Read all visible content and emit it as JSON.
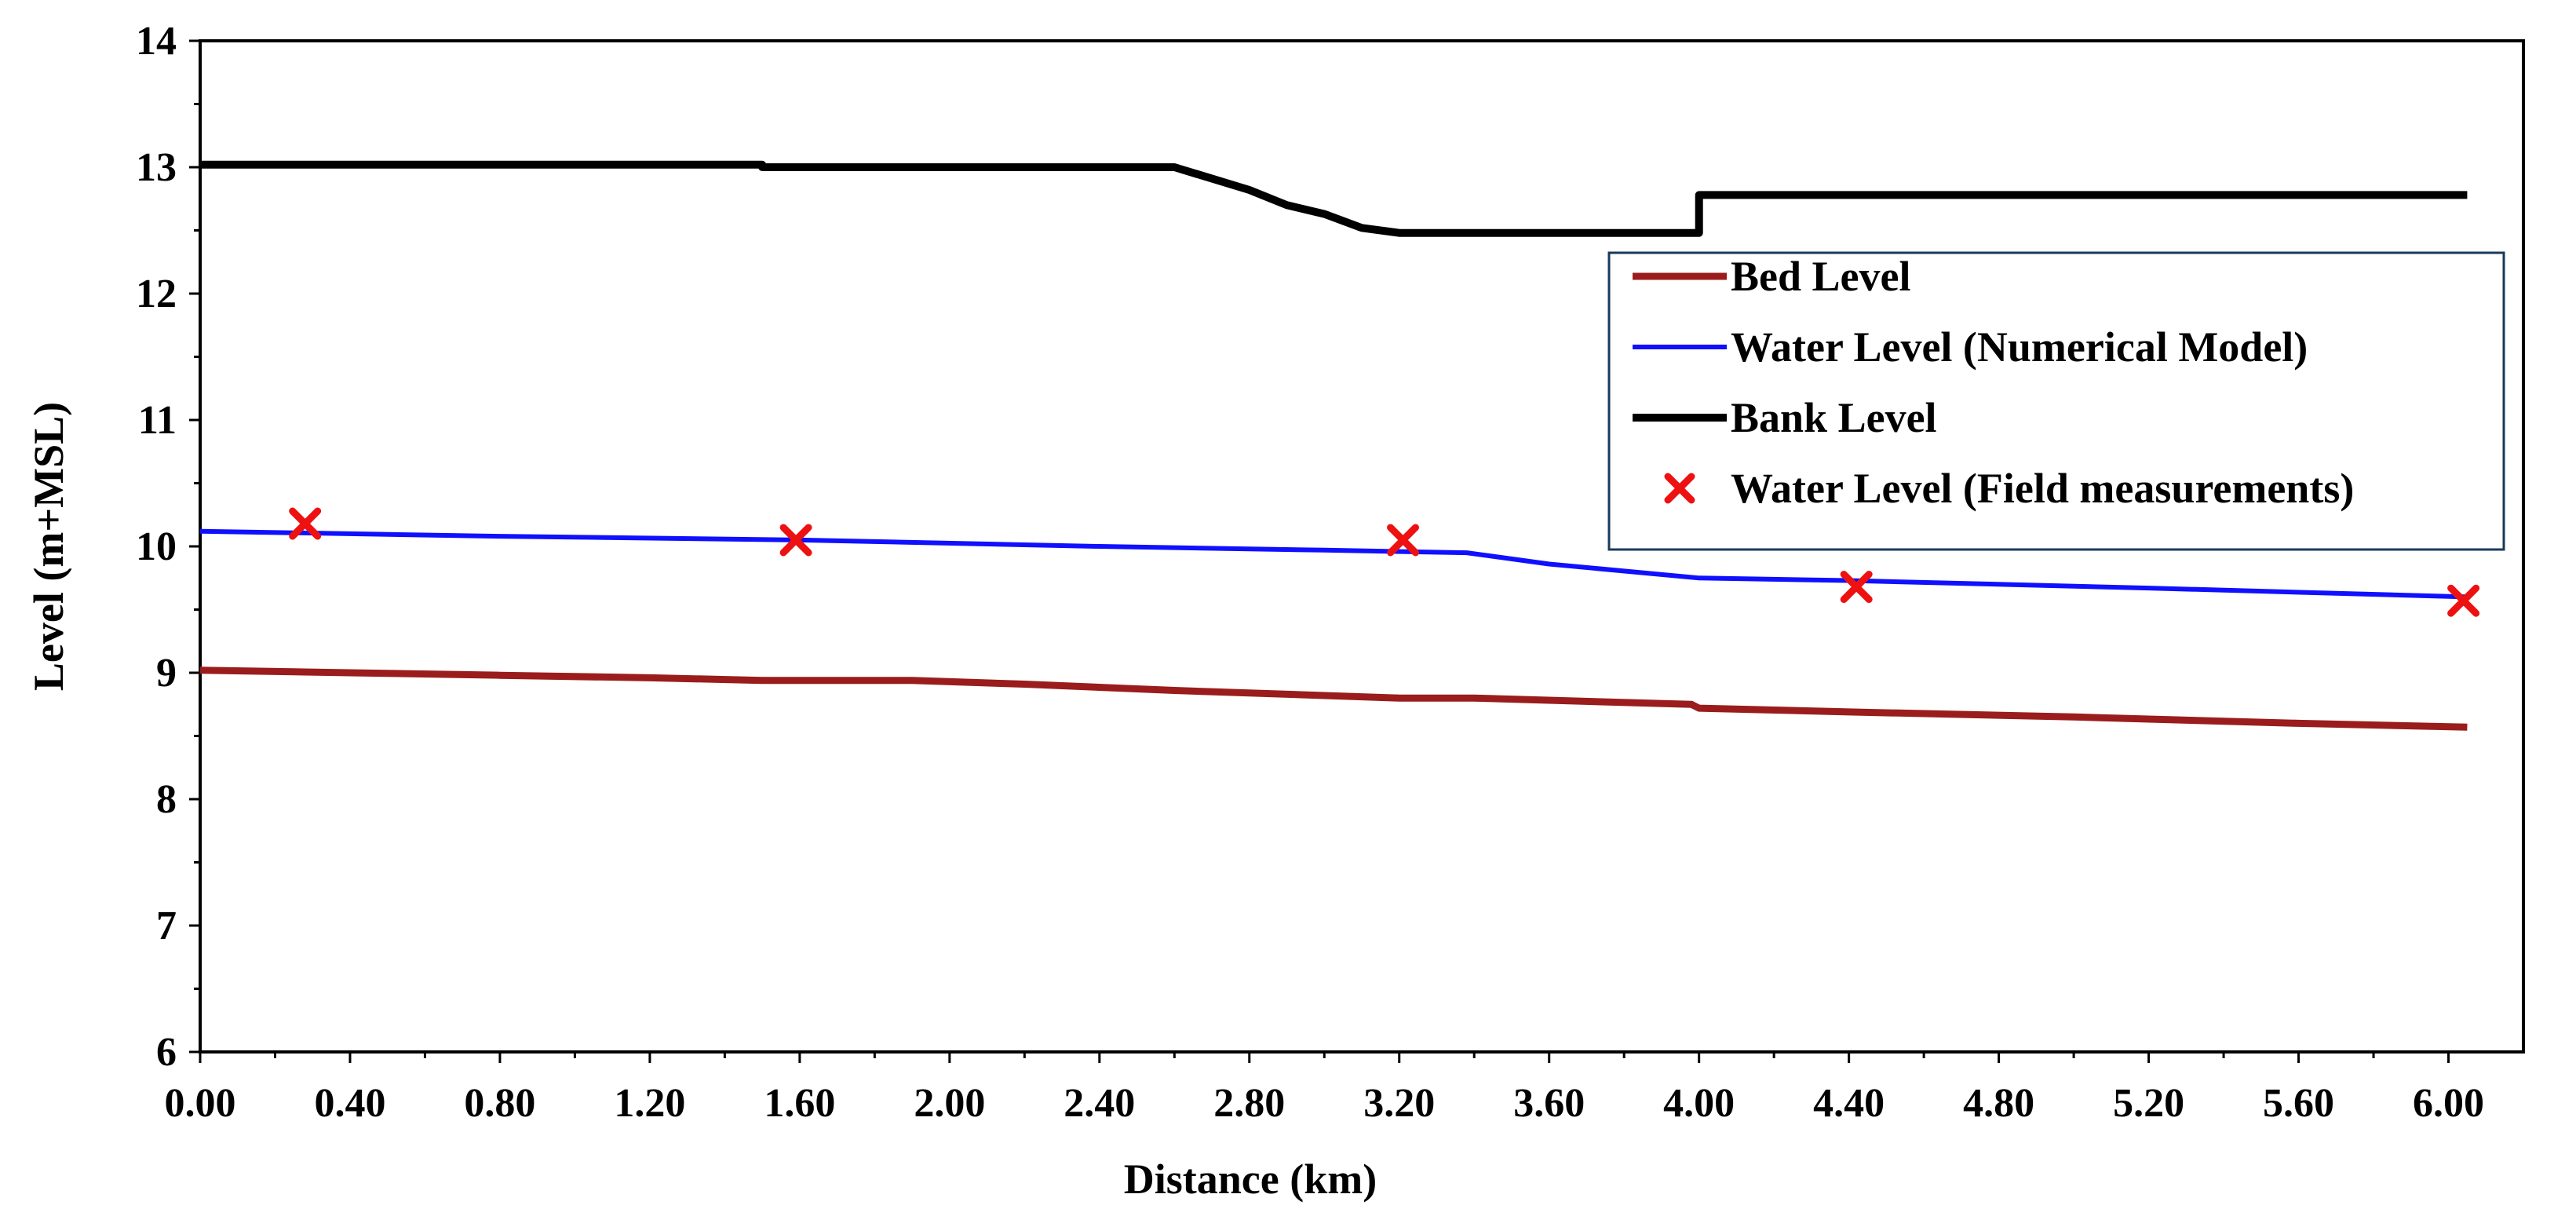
{
  "chart_data": {
    "type": "line",
    "xlabel": "Distance (km)",
    "ylabel": "Level (m+MSL)",
    "xlim": [
      0,
      6.2
    ],
    "ylim": [
      6,
      14
    ],
    "x_ticks": [
      "0.00",
      "0.40",
      "0.80",
      "1.20",
      "1.60",
      "2.00",
      "2.40",
      "2.80",
      "3.20",
      "3.60",
      "4.00",
      "4.40",
      "4.80",
      "5.20",
      "5.60",
      "6.00"
    ],
    "y_ticks": [
      "6",
      "7",
      "8",
      "9",
      "10",
      "11",
      "12",
      "13",
      "14"
    ],
    "legend_position": "top-right",
    "series": [
      {
        "name": "Bed Level",
        "color": "#9b1c1c",
        "marker": "line",
        "points": [
          [
            0.0,
            9.02
          ],
          [
            0.4,
            9.0
          ],
          [
            0.8,
            8.98
          ],
          [
            1.2,
            8.96
          ],
          [
            1.5,
            8.94
          ],
          [
            1.9,
            8.94
          ],
          [
            2.2,
            8.91
          ],
          [
            2.6,
            8.86
          ],
          [
            3.0,
            8.82
          ],
          [
            3.2,
            8.8
          ],
          [
            3.4,
            8.8
          ],
          [
            3.98,
            8.75
          ],
          [
            4.0,
            8.72
          ],
          [
            4.4,
            8.69
          ],
          [
            5.0,
            8.65
          ],
          [
            5.6,
            8.6
          ],
          [
            6.05,
            8.57
          ]
        ]
      },
      {
        "name": "Water Level (Numerical Model)",
        "color": "#1010ff",
        "marker": "line",
        "points": [
          [
            0.0,
            10.12
          ],
          [
            0.8,
            10.08
          ],
          [
            1.6,
            10.05
          ],
          [
            2.4,
            10.0
          ],
          [
            3.0,
            9.97
          ],
          [
            3.38,
            9.95
          ],
          [
            3.6,
            9.86
          ],
          [
            4.0,
            9.75
          ],
          [
            4.4,
            9.73
          ],
          [
            5.2,
            9.67
          ],
          [
            6.05,
            9.6
          ]
        ]
      },
      {
        "name": "Bank Level",
        "color": "#000000",
        "marker": "line",
        "points": [
          [
            0.0,
            13.02
          ],
          [
            1.5,
            13.02
          ],
          [
            1.5,
            13.0
          ],
          [
            2.6,
            13.0
          ],
          [
            2.8,
            12.82
          ],
          [
            2.9,
            12.7
          ],
          [
            3.0,
            12.63
          ],
          [
            3.1,
            12.52
          ],
          [
            3.2,
            12.48
          ],
          [
            4.0,
            12.48
          ],
          [
            4.0,
            12.78
          ],
          [
            6.05,
            12.78
          ]
        ]
      },
      {
        "name": "Water Level (Field measurements)",
        "color": "#ee1111",
        "marker": "x",
        "points": [
          [
            0.28,
            10.18
          ],
          [
            1.59,
            10.05
          ],
          [
            3.21,
            10.05
          ],
          [
            4.42,
            9.68
          ],
          [
            6.04,
            9.57
          ]
        ]
      }
    ]
  }
}
